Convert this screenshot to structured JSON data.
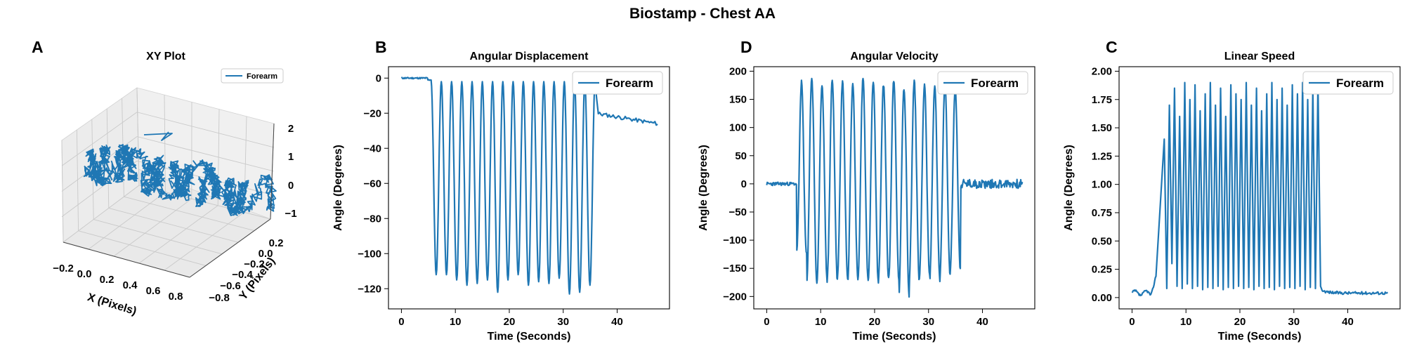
{
  "figure": {
    "suptitle": "Biostamp - Chest AA"
  },
  "colors": {
    "series": "#1f77b4",
    "pane": "#f0f0f0"
  },
  "chart_data": [
    {
      "panel": "A",
      "type": "line3d",
      "title": "XY Plot",
      "xlabel": "X (Pixels)",
      "ylabel": "Y (Pixels)",
      "zlabel": "",
      "xticks": [
        "−0.2",
        "0.0",
        "0.2",
        "0.4",
        "0.6",
        "0.8"
      ],
      "yticks": [
        "0.2",
        "0.0",
        "−0.2",
        "−0.4",
        "−0.6",
        "−0.8"
      ],
      "zticks": [
        "2",
        "1",
        "0",
        "−1"
      ],
      "xlim": [
        -0.25,
        0.85
      ],
      "ylim": [
        -0.85,
        0.25
      ],
      "zlim": [
        -1.3,
        2.2
      ],
      "legend": {
        "entries": [
          "Forearm"
        ],
        "position": "upper-right"
      },
      "grid": true,
      "series": [
        {
          "name": "Forearm",
          "description_points": "dense loop trajectory"
        }
      ]
    },
    {
      "panel": "B",
      "type": "line",
      "title": "Angular Displacement",
      "xlabel": "Time (Seconds)",
      "ylabel": "Angle (Degrees)",
      "xlim": [
        -2.4,
        49.7
      ],
      "ylim": [
        -131.5,
        6.5
      ],
      "xticks": [
        0,
        10,
        20,
        30,
        40
      ],
      "yticks": [
        0,
        -20,
        -40,
        -60,
        -80,
        -100,
        -120
      ],
      "xtick_labels": [
        "0",
        "10",
        "20",
        "30",
        "40"
      ],
      "ytick_labels": [
        "0",
        "−20",
        "−40",
        "−60",
        "−80",
        "−100",
        "−120"
      ],
      "legend": {
        "entries": [
          "Forearm"
        ],
        "position": "upper-right"
      },
      "grid": false,
      "series": [
        {
          "name": "Forearm",
          "x_range": [
            0,
            47.5
          ],
          "baseline_before": 0,
          "active_start": 5.5,
          "active_end": 35.0,
          "cycle_period": 1.9,
          "cycle_peak": -2,
          "cycle_troughs": [
            -112,
            -112,
            -115,
            -118,
            -117,
            -115,
            -122,
            -115,
            -112,
            -118,
            -116,
            -117,
            -114,
            -123,
            -122,
            -118
          ],
          "post_level_start": -20,
          "post_level_end": -26
        }
      ]
    },
    {
      "panel": "D",
      "type": "line",
      "title": "Angular Velocity",
      "xlabel": "Time (Seconds)",
      "ylabel": "Angle (Degrees)",
      "xlim": [
        -2.4,
        49.7
      ],
      "ylim": [
        -222,
        208
      ],
      "xticks": [
        0,
        10,
        20,
        30,
        40
      ],
      "yticks": [
        200,
        150,
        100,
        50,
        0,
        -50,
        -100,
        -150,
        -200
      ],
      "xtick_labels": [
        "0",
        "10",
        "20",
        "30",
        "40"
      ],
      "ytick_labels": [
        "200",
        "150",
        "100",
        "50",
        "0",
        "−50",
        "−100",
        "−150",
        "−200"
      ],
      "legend": {
        "entries": [
          "Forearm"
        ],
        "position": "upper-right"
      },
      "grid": false,
      "series": [
        {
          "name": "Forearm",
          "x_range": [
            0,
            47.5
          ],
          "baseline": 0,
          "active_start": 5.5,
          "active_end": 35.0,
          "cycle_period": 1.9,
          "cycle_peaks": [
            180,
            188,
            175,
            185,
            182,
            178,
            188,
            180,
            175,
            185,
            170,
            182,
            178,
            175,
            180,
            170
          ],
          "cycle_troughs": [
            -125,
            -175,
            -172,
            -170,
            -165,
            -172,
            -168,
            -175,
            -170,
            -168,
            -200,
            -172,
            -165,
            -170,
            -160,
            -150
          ]
        }
      ]
    },
    {
      "panel": "C",
      "type": "line",
      "title": "Linear Speed",
      "xlabel": "Time (Seconds)",
      "ylabel": "Angle (Degrees)",
      "xlim": [
        -2.4,
        49.7
      ],
      "ylim": [
        -0.1,
        2.04
      ],
      "xticks": [
        0,
        10,
        20,
        30,
        40
      ],
      "yticks": [
        0.0,
        0.25,
        0.5,
        0.75,
        1.0,
        1.25,
        1.5,
        1.75,
        2.0
      ],
      "xtick_labels": [
        "0",
        "10",
        "20",
        "30",
        "40"
      ],
      "ytick_labels": [
        "0.00",
        "0.25",
        "0.50",
        "0.75",
        "1.00",
        "1.25",
        "1.50",
        "1.75",
        "2.00"
      ],
      "legend": {
        "entries": [
          "Forearm"
        ],
        "position": "upper-right"
      },
      "grid": false,
      "series": [
        {
          "name": "Forearm",
          "x_range": [
            0,
            47.5
          ],
          "baseline": 0.04,
          "active_start": 5.5,
          "active_end": 35.0,
          "half_period": 0.95,
          "peaks": [
            1.4,
            1.7,
            1.85,
            1.6,
            1.9,
            1.75,
            1.88,
            1.65,
            1.8,
            1.9,
            1.7,
            1.85,
            1.6,
            1.88,
            1.8,
            1.75,
            1.9,
            1.7,
            1.85,
            1.65,
            1.8,
            1.9,
            1.75,
            1.85,
            1.7,
            1.88,
            1.8,
            1.9,
            1.75,
            1.85,
            1.9
          ],
          "troughs": [
            0.08,
            0.3,
            0.1,
            0.08,
            0.12,
            0.08,
            0.1,
            0.07,
            0.09,
            0.08,
            0.1,
            0.07,
            0.09,
            0.08,
            0.1,
            0.08,
            0.09,
            0.07,
            0.1,
            0.08,
            0.09,
            0.07,
            0.1,
            0.08,
            0.09,
            0.08,
            0.1,
            0.07,
            0.09,
            0.08
          ]
        }
      ]
    }
  ]
}
